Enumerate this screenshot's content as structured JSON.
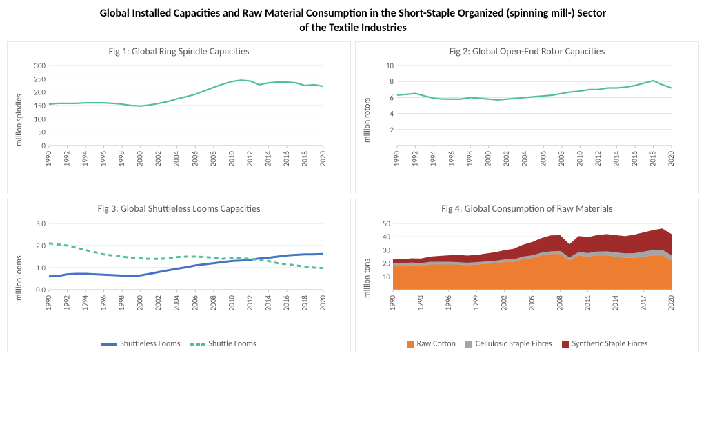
{
  "title_line1": "Global Installed Capacities and Raw Material Consumption in the Short-Staple Organized (spinning mill-) Sector",
  "title_line2": "of the Textile Industries",
  "colors": {
    "teal": "#4fbfa4",
    "blue": "#4472c4",
    "orange": "#ed7d31",
    "gray": "#a5a5a5",
    "darkred": "#a02b2b",
    "gridline": "#e0e0e0",
    "axis": "#bfbfbf",
    "text": "#595959"
  },
  "years_even": [
    1990,
    1992,
    1994,
    1996,
    1998,
    2000,
    2002,
    2004,
    2006,
    2008,
    2010,
    2012,
    2014,
    2016,
    2018,
    2020
  ],
  "years_tri": [
    1990,
    1993,
    1996,
    1999,
    2002,
    2005,
    2008,
    2011,
    2014,
    2017,
    2020
  ],
  "fig1": {
    "title": "Fig 1: Global Ring Spindle Capacities",
    "ylabel": "million spindles",
    "ymin": 0,
    "ymax": 300,
    "ystep": 50,
    "series": [
      {
        "name": "ring",
        "color": "#4fbfa4",
        "width": 2.2,
        "dash": "none",
        "data": [
          155,
          158,
          158,
          158,
          160,
          160,
          160,
          158,
          155,
          150,
          148,
          152,
          158,
          165,
          175,
          183,
          192,
          205,
          218,
          230,
          240,
          245,
          242,
          228,
          235,
          238,
          238,
          235,
          225,
          228,
          222
        ]
      }
    ]
  },
  "fig2": {
    "title": "Fig 2: Global Open-End Rotor Capacities",
    "ylabel": "million rotors",
    "ymin": 0,
    "ymax": 10,
    "ystep": 2,
    "ytick_start": 2,
    "series": [
      {
        "name": "rotor",
        "color": "#4fbfa4",
        "width": 2.2,
        "dash": "none",
        "data": [
          6.3,
          6.4,
          6.5,
          6.2,
          5.9,
          5.8,
          5.8,
          5.8,
          6.0,
          5.9,
          5.8,
          5.7,
          5.8,
          5.9,
          6.0,
          6.1,
          6.2,
          6.3,
          6.5,
          6.7,
          6.8,
          7.0,
          7.0,
          7.2,
          7.2,
          7.3,
          7.5,
          7.8,
          8.1,
          7.6,
          7.2
        ]
      }
    ]
  },
  "fig3": {
    "title": "Fig 3: Global Shuttleless Looms Capacities",
    "ylabel": "million looms",
    "ymin": 0,
    "ymax": 3.0,
    "ystep": 1.0,
    "decimals": 1,
    "series": [
      {
        "name": "shuttleless",
        "label": "Shuttleless Looms",
        "color": "#4472c4",
        "width": 3,
        "dash": "none",
        "data": [
          0.6,
          0.62,
          0.7,
          0.72,
          0.72,
          0.7,
          0.68,
          0.66,
          0.64,
          0.62,
          0.65,
          0.72,
          0.8,
          0.88,
          0.95,
          1.02,
          1.1,
          1.15,
          1.2,
          1.25,
          1.3,
          1.32,
          1.35,
          1.42,
          1.45,
          1.5,
          1.55,
          1.58,
          1.6,
          1.6,
          1.62
        ]
      },
      {
        "name": "shuttle",
        "label": "Shuttle Looms",
        "color": "#4fbfa4",
        "width": 3,
        "dash": "6,5",
        "data": [
          2.1,
          2.05,
          2.0,
          1.9,
          1.8,
          1.7,
          1.6,
          1.55,
          1.5,
          1.45,
          1.42,
          1.4,
          1.4,
          1.42,
          1.48,
          1.5,
          1.5,
          1.48,
          1.45,
          1.4,
          1.45,
          1.42,
          1.4,
          1.35,
          1.3,
          1.2,
          1.15,
          1.1,
          1.05,
          1.0,
          0.98
        ]
      }
    ],
    "legend": [
      {
        "label": "Shuttleless Looms",
        "color": "#4472c4",
        "dash": "none"
      },
      {
        "label": "Shuttle Looms",
        "color": "#4fbfa4",
        "dash": "dashed"
      }
    ]
  },
  "fig4": {
    "title": "Fig 4: Global Consumption of Raw Materials",
    "ylabel": "million tons",
    "ymin": 0,
    "ymax": 50,
    "ystep": 10,
    "ytick_start": 10,
    "stack": [
      {
        "name": "raw-cotton",
        "label": "Raw Cotton",
        "color": "#ed7d31",
        "data": [
          18,
          18,
          18.5,
          18,
          19,
          19,
          19,
          19,
          18.5,
          19,
          19.5,
          20,
          21,
          21,
          23,
          24,
          26,
          27,
          27,
          22,
          26,
          25,
          26,
          26,
          25,
          24,
          24,
          25,
          26,
          26,
          22
        ]
      },
      {
        "name": "cellulosic",
        "label": "Cellulosic Staple Fibres",
        "color": "#a5a5a5",
        "data": [
          2,
          2,
          2,
          2,
          2,
          2,
          2,
          1.8,
          1.8,
          1.8,
          1.8,
          1.8,
          1.8,
          1.9,
          2,
          2,
          2,
          2,
          2.2,
          2.3,
          2.5,
          2.7,
          2.8,
          3,
          3.2,
          3.4,
          3.6,
          3.8,
          4,
          4.2,
          4
        ]
      },
      {
        "name": "synthetic",
        "label": "Synthetic Staple Fibres",
        "color": "#a02b2b",
        "data": [
          3,
          3,
          3.2,
          3.5,
          4,
          4.5,
          5,
          5.5,
          5.5,
          5.5,
          6,
          6.5,
          7,
          8,
          9,
          10,
          11,
          12,
          12,
          10,
          12,
          12,
          12.5,
          13,
          13,
          13,
          14,
          14.5,
          15,
          16,
          16
        ]
      }
    ],
    "legend": [
      {
        "label": "Raw Cotton",
        "color": "#ed7d31"
      },
      {
        "label": "Cellulosic Staple Fibres",
        "color": "#a5a5a5"
      },
      {
        "label": "Synthetic Staple Fibres",
        "color": "#a02b2b"
      }
    ]
  }
}
